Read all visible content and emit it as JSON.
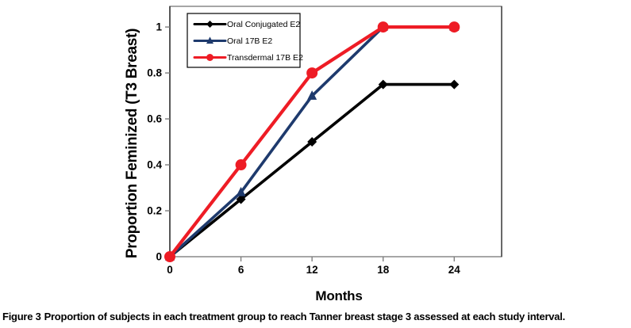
{
  "figure": {
    "caption_label": "Figure 3",
    "caption_text": "Proportion of subjects in each treatment group to reach Tanner breast stage 3 assessed at each study interval."
  },
  "chart_data": {
    "type": "line",
    "title": "",
    "xlabel": "Months",
    "ylabel": "Proportion Feminized (T3 Breast)",
    "x": [
      0,
      6,
      12,
      18,
      24
    ],
    "x_tick_labels": [
      "0",
      "6",
      "12",
      "18",
      "24"
    ],
    "y_ticks": [
      0,
      0.2,
      0.4,
      0.6,
      0.8,
      1
    ],
    "y_tick_labels": [
      "0",
      "0.2",
      "0.4",
      "0.6",
      "0.8",
      "1"
    ],
    "xlim": [
      0,
      28
    ],
    "ylim": [
      0,
      1.09
    ],
    "grid": false,
    "legend_position": "top-left-inside",
    "frame_color": "#7f7f7f",
    "axis_color": "#262626",
    "series": [
      {
        "name": "Oral Conjugated E2",
        "color": "#000000",
        "marker": "diamond",
        "values": [
          0,
          0.25,
          0.5,
          0.75,
          0.75
        ]
      },
      {
        "name": "Oral 17B E2",
        "color": "#1e3a6d",
        "marker": "triangle",
        "values": [
          0,
          0.28,
          0.7,
          1,
          1
        ]
      },
      {
        "name": "Transdermal 17B E2",
        "color": "#ee1c25",
        "marker": "circle",
        "values": [
          0,
          0.4,
          0.8,
          1,
          1
        ]
      }
    ]
  }
}
